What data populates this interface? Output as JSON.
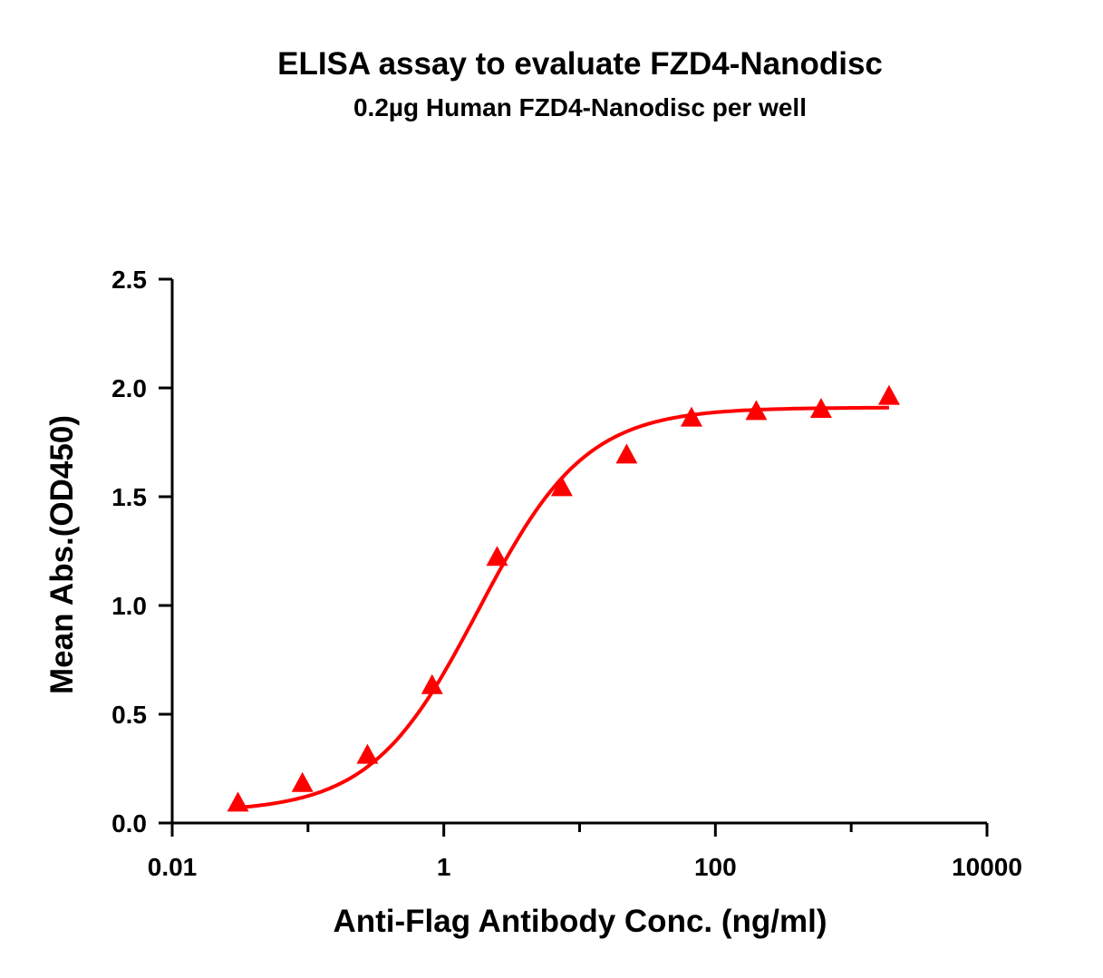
{
  "chart_data": {
    "type": "scatter",
    "title": "ELISA assay to evaluate FZD4-Nanodisc",
    "subtitle": "0.2µg Human FZD4-Nanodisc per well",
    "xlabel": "Anti-Flag Antibody Conc. (ng/ml)",
    "ylabel": "Mean Abs.(OD450)",
    "xscale": "log",
    "xlim": [
      0.01,
      10000
    ],
    "ylim": [
      0,
      2.5
    ],
    "xticks": [
      0.01,
      1,
      100,
      10000
    ],
    "xtick_labels": [
      "0.01",
      "1",
      "100",
      "10000"
    ],
    "yticks": [
      0,
      0.5,
      1,
      1.5,
      2,
      2.5
    ],
    "ytick_labels": [
      "0.0",
      "0.5",
      "1.0",
      "1.5",
      "2.0",
      "2.5"
    ],
    "grid": false,
    "color": "#ff0000",
    "series": [
      {
        "name": "FZD4-Nanodisc",
        "marker": "triangle",
        "x": [
          0.0305,
          0.091,
          0.274,
          0.82,
          2.47,
          7.4,
          22.2,
          66.7,
          200,
          600,
          1900
        ],
        "y": [
          0.09,
          0.18,
          0.31,
          0.63,
          1.22,
          1.54,
          1.69,
          1.86,
          1.89,
          1.9,
          1.96
        ]
      }
    ],
    "fit": {
      "type": "4PL",
      "bottom": 0.05,
      "top": 1.91,
      "ec50": 1.8,
      "hill": 1.1
    }
  }
}
